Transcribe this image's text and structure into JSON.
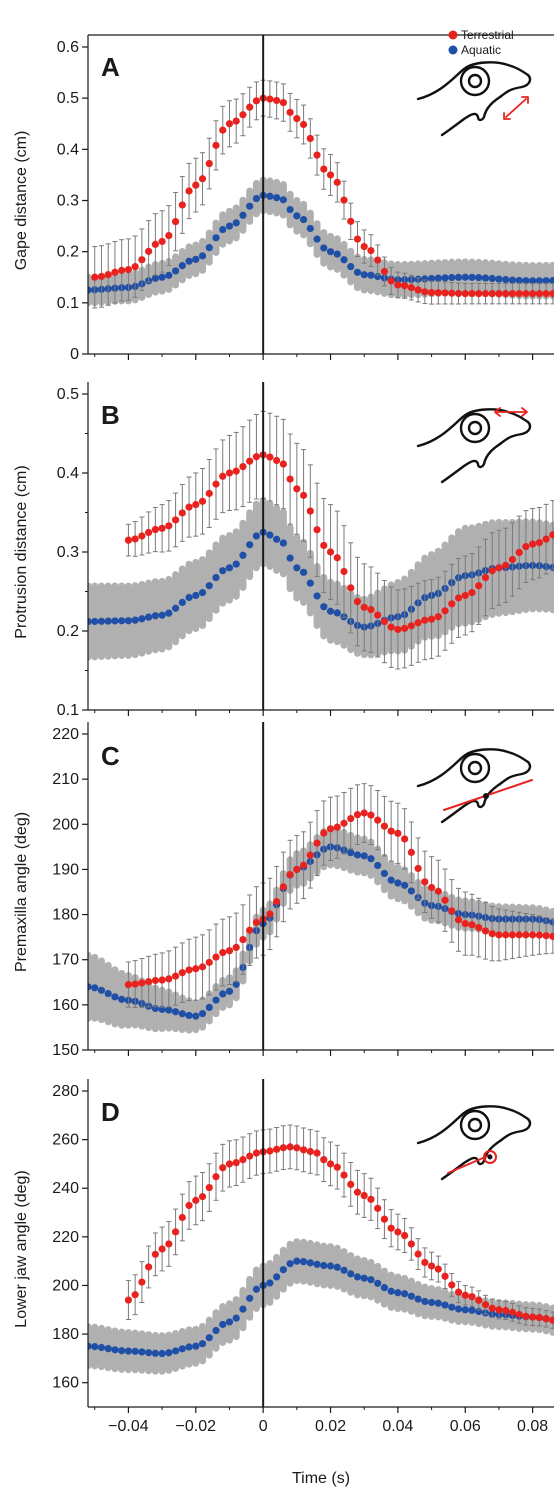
{
  "colors": {
    "terrestrial": "#e8231f",
    "aquatic": "#1f4fa6",
    "terrestrial_error": "#7a7a7a",
    "aquatic_error": "#b0b0b0",
    "axis": "#1a1a1a"
  },
  "legend": {
    "placement": "top-right",
    "entries": [
      "Terrestrial",
      "Aquatic"
    ]
  },
  "chart_data": [
    {
      "type": "scatter",
      "panel": "A",
      "ylabel": "Gape distance (cm)",
      "xlabel": "",
      "xlim": [
        -0.052,
        0.1
      ],
      "ylim": [
        0,
        0.6
      ],
      "yticks": [
        0,
        0.1,
        0.2,
        0.3,
        0.4,
        0.5,
        0.6
      ],
      "ytick_labels": [
        "0",
        "0.1",
        "0.2",
        "0.3",
        "0.4",
        "0.5",
        "0.6"
      ],
      "xticks": [
        -0.04,
        -0.02,
        0,
        0.02,
        0.04,
        0.06,
        0.08
      ],
      "x_minor_ticks": [
        -0.05,
        -0.03,
        -0.01,
        0.01,
        0.03,
        0.05,
        0.07,
        0.09
      ],
      "inset_icon": "gape-distance-icon",
      "series": [
        {
          "name": "Terrestrial",
          "x_start": -0.05,
          "x_end": 0.1,
          "keypoints": [
            [
              -0.05,
              0.15
            ],
            [
              -0.04,
              0.165
            ],
            [
              -0.03,
              0.22
            ],
            [
              -0.02,
              0.33
            ],
            [
              -0.01,
              0.45
            ],
            [
              0,
              0.5
            ],
            [
              0.005,
              0.495
            ],
            [
              0.01,
              0.46
            ],
            [
              0.02,
              0.35
            ],
            [
              0.03,
              0.21
            ],
            [
              0.04,
              0.135
            ],
            [
              0.05,
              0.12
            ],
            [
              0.06,
              0.118
            ],
            [
              0.08,
              0.118
            ],
            [
              0.1,
              0.118
            ]
          ],
          "error": [
            [
              -0.05,
              0.06
            ],
            [
              -0.03,
              0.06
            ],
            [
              -0.01,
              0.045
            ],
            [
              0,
              0.035
            ],
            [
              0.02,
              0.04
            ],
            [
              0.04,
              0.025
            ],
            [
              0.06,
              0.02
            ],
            [
              0.1,
              0.02
            ]
          ]
        },
        {
          "name": "Aquatic",
          "x_start": -0.052,
          "x_end": 0.1,
          "keypoints": [
            [
              -0.052,
              0.125
            ],
            [
              -0.04,
              0.13
            ],
            [
              -0.03,
              0.15
            ],
            [
              -0.02,
              0.185
            ],
            [
              -0.01,
              0.25
            ],
            [
              0,
              0.31
            ],
            [
              0.005,
              0.305
            ],
            [
              0.01,
              0.27
            ],
            [
              0.02,
              0.2
            ],
            [
              0.03,
              0.155
            ],
            [
              0.04,
              0.145
            ],
            [
              0.06,
              0.15
            ],
            [
              0.08,
              0.143
            ],
            [
              0.1,
              0.145
            ]
          ],
          "error": [
            [
              -0.052,
              0.025
            ],
            [
              0,
              0.03
            ],
            [
              0.03,
              0.03
            ],
            [
              0.1,
              0.03
            ]
          ]
        }
      ]
    },
    {
      "type": "scatter",
      "panel": "B",
      "ylabel": "Protrusion distance (cm)",
      "xlabel": "",
      "xlim": [
        -0.052,
        0.1
      ],
      "ylim": [
        0.1,
        0.5
      ],
      "yticks": [
        0.1,
        0.2,
        0.3,
        0.4,
        0.5
      ],
      "ytick_labels": [
        "0.1",
        "0.2",
        "0.3",
        "0.4",
        "0.5"
      ],
      "y_minor_ticks": [
        0.15,
        0.25,
        0.35,
        0.45
      ],
      "xticks": [
        -0.04,
        -0.02,
        0,
        0.02,
        0.04,
        0.06,
        0.08
      ],
      "x_minor_ticks": [
        -0.05,
        -0.03,
        -0.01,
        0.01,
        0.03,
        0.05,
        0.07,
        0.09
      ],
      "inset_icon": "protrusion-distance-icon",
      "series": [
        {
          "name": "Terrestrial",
          "x_start": -0.04,
          "x_end": 0.1,
          "keypoints": [
            [
              -0.04,
              0.315
            ],
            [
              -0.03,
              0.33
            ],
            [
              -0.02,
              0.36
            ],
            [
              -0.01,
              0.4
            ],
            [
              0,
              0.423
            ],
            [
              0.005,
              0.415
            ],
            [
              0.01,
              0.38
            ],
            [
              0.02,
              0.3
            ],
            [
              0.03,
              0.23
            ],
            [
              0.04,
              0.202
            ],
            [
              0.05,
              0.215
            ],
            [
              0.06,
              0.245
            ],
            [
              0.07,
              0.28
            ],
            [
              0.08,
              0.31
            ],
            [
              0.09,
              0.328
            ],
            [
              0.1,
              0.33
            ]
          ],
          "error": [
            [
              -0.04,
              0.02
            ],
            [
              -0.02,
              0.04
            ],
            [
              0,
              0.055
            ],
            [
              0.02,
              0.06
            ],
            [
              0.04,
              0.05
            ],
            [
              0.06,
              0.05
            ],
            [
              0.08,
              0.045
            ],
            [
              0.1,
              0.04
            ]
          ]
        },
        {
          "name": "Aquatic",
          "x_start": -0.052,
          "x_end": 0.1,
          "keypoints": [
            [
              -0.052,
              0.212
            ],
            [
              -0.04,
              0.213
            ],
            [
              -0.03,
              0.22
            ],
            [
              -0.02,
              0.245
            ],
            [
              -0.01,
              0.28
            ],
            [
              0,
              0.325
            ],
            [
              0.005,
              0.315
            ],
            [
              0.01,
              0.28
            ],
            [
              0.02,
              0.225
            ],
            [
              0.03,
              0.205
            ],
            [
              0.04,
              0.218
            ],
            [
              0.05,
              0.245
            ],
            [
              0.06,
              0.27
            ],
            [
              0.07,
              0.28
            ],
            [
              0.08,
              0.283
            ],
            [
              0.09,
              0.279
            ],
            [
              0.1,
              0.273
            ]
          ],
          "error": [
            [
              -0.052,
              0.045
            ],
            [
              0,
              0.04
            ],
            [
              0.03,
              0.035
            ],
            [
              0.06,
              0.06
            ],
            [
              0.1,
              0.05
            ]
          ]
        }
      ]
    },
    {
      "type": "scatter",
      "panel": "C",
      "ylabel": "Premaxilla angle (deg)",
      "xlabel": "",
      "xlim": [
        -0.052,
        0.1
      ],
      "ylim": [
        150,
        220
      ],
      "yticks": [
        150,
        160,
        170,
        180,
        190,
        200,
        210,
        220
      ],
      "ytick_labels": [
        "150",
        "160",
        "170",
        "180",
        "190",
        "200",
        "210",
        "220"
      ],
      "xticks": [
        -0.04,
        -0.02,
        0,
        0.02,
        0.04,
        0.06,
        0.08
      ],
      "x_minor_ticks": [
        -0.05,
        -0.03,
        -0.01,
        0.01,
        0.03,
        0.05,
        0.07,
        0.09
      ],
      "inset_icon": "premaxilla-angle-icon",
      "series": [
        {
          "name": "Terrestrial",
          "x_start": -0.04,
          "x_end": 0.1,
          "keypoints": [
            [
              -0.04,
              164.5
            ],
            [
              -0.03,
              165.5
            ],
            [
              -0.02,
              168
            ],
            [
              -0.01,
              172
            ],
            [
              0,
              179
            ],
            [
              0.01,
              190
            ],
            [
              0.02,
              199
            ],
            [
              0.03,
              202.5
            ],
            [
              0.04,
              198
            ],
            [
              0.05,
              186
            ],
            [
              0.06,
              178
            ],
            [
              0.07,
              175.5
            ],
            [
              0.08,
              175.5
            ],
            [
              0.09,
              175
            ],
            [
              0.1,
              175
            ]
          ],
          "error": [
            [
              -0.04,
              5
            ],
            [
              -0.02,
              7
            ],
            [
              0,
              8
            ],
            [
              0.03,
              6.5
            ],
            [
              0.06,
              7
            ],
            [
              0.1,
              2
            ]
          ]
        },
        {
          "name": "Aquatic",
          "x_start": -0.052,
          "x_end": 0.1,
          "keypoints": [
            [
              -0.052,
              164
            ],
            [
              -0.04,
              161
            ],
            [
              -0.03,
              159
            ],
            [
              -0.02,
              157.5
            ],
            [
              -0.01,
              163
            ],
            [
              0,
              178
            ],
            [
              0.01,
              190
            ],
            [
              0.02,
              195
            ],
            [
              0.03,
              193
            ],
            [
              0.04,
              187
            ],
            [
              0.05,
              182
            ],
            [
              0.06,
              180
            ],
            [
              0.07,
              179
            ],
            [
              0.08,
              179
            ],
            [
              0.09,
              178
            ],
            [
              0.1,
              177
            ]
          ],
          "error": [
            [
              -0.052,
              7
            ],
            [
              -0.02,
              3
            ],
            [
              0,
              3
            ],
            [
              0.02,
              4
            ],
            [
              0.06,
              3
            ],
            [
              0.1,
              2
            ]
          ]
        }
      ]
    },
    {
      "type": "scatter",
      "panel": "D",
      "ylabel": "Lower jaw angle (deg)",
      "xlabel": "Time (s)",
      "xlim": [
        -0.052,
        0.1
      ],
      "ylim": [
        150,
        280
      ],
      "yticks": [
        160,
        180,
        200,
        220,
        240,
        260,
        280
      ],
      "ytick_labels": [
        "160",
        "180",
        "200",
        "220",
        "240",
        "260",
        "280"
      ],
      "xticks": [
        -0.04,
        -0.02,
        0,
        0.02,
        0.04,
        0.06,
        0.08
      ],
      "xtick_labels": [
        "−0.04",
        "−0.02",
        "0",
        "0.02",
        "0.04",
        "0.06",
        "0.08"
      ],
      "x_minor_ticks": [
        -0.05,
        -0.03,
        -0.01,
        0.01,
        0.03,
        0.05,
        0.07,
        0.09
      ],
      "inset_icon": "lower-jaw-angle-icon",
      "series": [
        {
          "name": "Terrestrial",
          "x_start": -0.04,
          "x_end": 0.1,
          "keypoints": [
            [
              -0.04,
              194
            ],
            [
              -0.03,
              215
            ],
            [
              -0.02,
              235
            ],
            [
              -0.01,
              250
            ],
            [
              0,
              255
            ],
            [
              0.008,
              257
            ],
            [
              0.015,
              255
            ],
            [
              0.02,
              250
            ],
            [
              0.03,
              237
            ],
            [
              0.04,
              222
            ],
            [
              0.05,
              208
            ],
            [
              0.06,
              196
            ],
            [
              0.07,
              190
            ],
            [
              0.08,
              187
            ],
            [
              0.09,
              185
            ],
            [
              0.1,
              184
            ]
          ],
          "error": [
            [
              -0.04,
              8
            ],
            [
              -0.02,
              10
            ],
            [
              0,
              9
            ],
            [
              0.03,
              9
            ],
            [
              0.06,
              4
            ],
            [
              0.1,
              3
            ]
          ]
        },
        {
          "name": "Aquatic",
          "x_start": -0.052,
          "x_end": 0.1,
          "keypoints": [
            [
              -0.052,
              175
            ],
            [
              -0.04,
              173
            ],
            [
              -0.03,
              172
            ],
            [
              -0.02,
              175
            ],
            [
              -0.01,
              185
            ],
            [
              0,
              200
            ],
            [
              0.01,
              210
            ],
            [
              0.02,
              208
            ],
            [
              0.03,
              203
            ],
            [
              0.04,
              197
            ],
            [
              0.05,
              193
            ],
            [
              0.06,
              190
            ],
            [
              0.07,
              188
            ],
            [
              0.08,
              187
            ],
            [
              0.09,
              185
            ],
            [
              0.1,
              184
            ]
          ],
          "error": [
            [
              -0.052,
              8
            ],
            [
              -0.02,
              7
            ],
            [
              0,
              8
            ],
            [
              0.02,
              8
            ],
            [
              0.06,
              5
            ],
            [
              0.1,
              5
            ]
          ]
        }
      ]
    }
  ]
}
